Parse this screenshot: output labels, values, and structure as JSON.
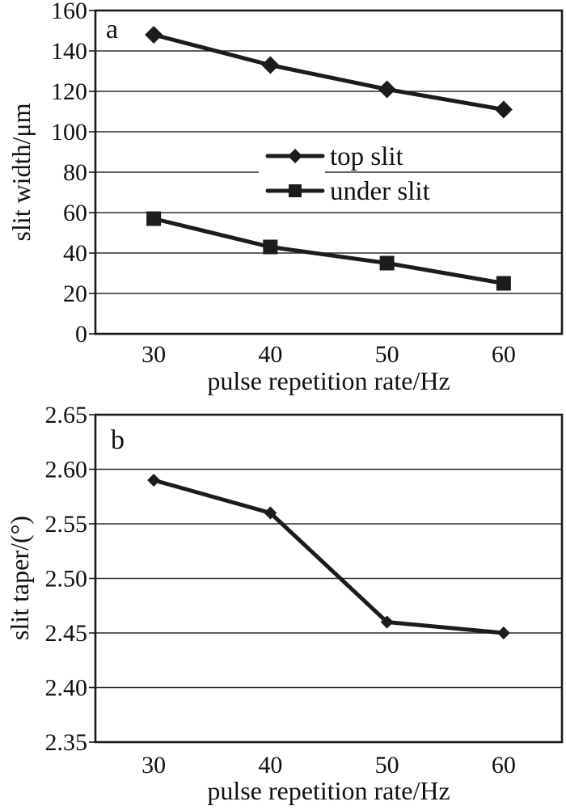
{
  "figure": {
    "background": "#ffffff",
    "text_color": "#111111",
    "line_color": "#1c1c1c",
    "grid_color": "#2b2b2b",
    "border_color": "#1a1a1a"
  },
  "chart_data": [
    {
      "type": "line",
      "panel_label": "a",
      "xlabel": "pulse repetition rate/Hz",
      "ylabel": "slit width/μm",
      "x": [
        30,
        40,
        50,
        60
      ],
      "series": [
        {
          "name": "top slit",
          "marker": "diamond",
          "values": [
            148,
            133,
            121,
            111
          ]
        },
        {
          "name": "under slit",
          "marker": "square",
          "values": [
            57,
            43,
            35,
            25
          ]
        }
      ],
      "xlim": [
        25,
        65
      ],
      "ylim": [
        0,
        160
      ],
      "xticks": [
        30,
        40,
        50,
        60
      ],
      "xtick_labels": [
        "30",
        "40",
        "50",
        "60"
      ],
      "yticks": [
        0,
        20,
        40,
        60,
        80,
        100,
        120,
        140,
        160
      ],
      "ytick_labels": [
        "0",
        "20",
        "40",
        "60",
        "80",
        "100",
        "120",
        "140",
        "160"
      ],
      "grid": true,
      "legend": {
        "show": true,
        "position": "inside-center"
      }
    },
    {
      "type": "line",
      "panel_label": "b",
      "xlabel": "pulse repetition rate/Hz",
      "ylabel": "slit taper/(°)",
      "x": [
        30,
        40,
        50,
        60
      ],
      "series": [
        {
          "name": "slit taper",
          "marker": "diamond",
          "values": [
            2.59,
            2.56,
            2.46,
            2.45
          ]
        }
      ],
      "xlim": [
        25,
        65
      ],
      "ylim": [
        2.35,
        2.65
      ],
      "xticks": [
        30,
        40,
        50,
        60
      ],
      "xtick_labels": [
        "30",
        "40",
        "50",
        "60"
      ],
      "yticks": [
        2.35,
        2.4,
        2.45,
        2.5,
        2.55,
        2.6,
        2.65
      ],
      "ytick_labels": [
        "2.35",
        "2.40",
        "2.45",
        "2.50",
        "2.55",
        "2.60",
        "2.65"
      ],
      "grid": true,
      "legend": {
        "show": false
      }
    }
  ]
}
